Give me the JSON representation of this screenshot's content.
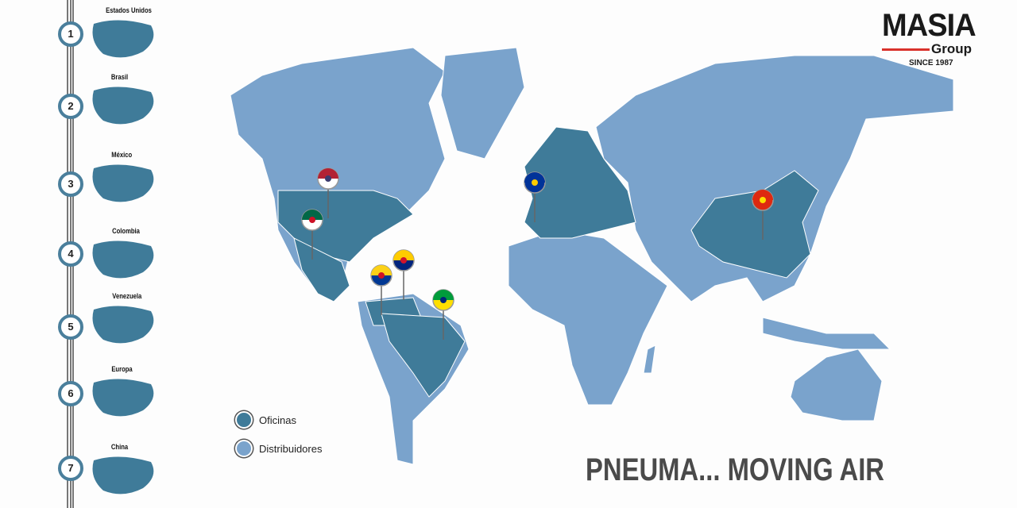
{
  "sidebar": {
    "items": [
      {
        "num": "1",
        "label": "Estados Unidos"
      },
      {
        "num": "2",
        "label": "Brasil"
      },
      {
        "num": "3",
        "label": "México"
      },
      {
        "num": "4",
        "label": "Colombia"
      },
      {
        "num": "5",
        "label": "Venezuela"
      },
      {
        "num": "6",
        "label": "Europa"
      },
      {
        "num": "7",
        "label": "China"
      }
    ]
  },
  "logo": {
    "name": "MASIA",
    "sub": "Group",
    "since": "SINCE 1987"
  },
  "legend": [
    {
      "label": "Oficinas",
      "color": "#3f7b99"
    },
    {
      "label": "Distribuidores",
      "color": "#7aa3cc"
    }
  ],
  "slogan": "PNEUMA... MOVING AIR",
  "colors": {
    "office": "#3f7b99",
    "distributor": "#7aa3cc",
    "accent": "#d9312b"
  },
  "pins": [
    "usa-flag",
    "mexico-flag",
    "colombia-flag",
    "venezuela-flag",
    "brazil-flag",
    "eu-flag",
    "china-flag"
  ]
}
